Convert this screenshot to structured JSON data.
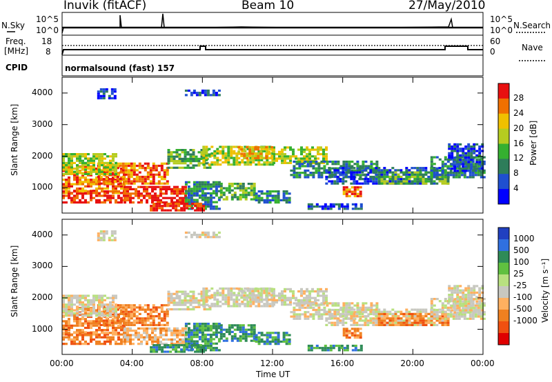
{
  "header": {
    "station": "Inuvik (fitACF)",
    "beam": "Beam 10",
    "date": "27/May/2010"
  },
  "top_panels": {
    "nsky": {
      "label": "N.Sky",
      "ticks": [
        "10^5",
        "10^0"
      ],
      "right_label": "N.Search",
      "right_ticks": [
        "10^5",
        "10^0"
      ]
    },
    "freq": {
      "label_line1": "Freq.",
      "label_line2": "[MHz]",
      "ticks": [
        "18",
        "8"
      ],
      "right_label": "Nave",
      "right_ticks": [
        "60",
        "0"
      ]
    },
    "cpid": {
      "label": "CPID",
      "value": "normalsound (fast) 157"
    }
  },
  "chart_data": [
    {
      "type": "heatmap",
      "name": "power",
      "ylabel": "Slant Range [km]",
      "xlabel": "",
      "x_ticks": [
        "00:00",
        "04:00",
        "08:00",
        "12:00",
        "16:00",
        "20:00",
        "00:00"
      ],
      "y_ticks": [
        "1000",
        "2000",
        "3000",
        "4000"
      ],
      "ylim": [
        200,
        4500
      ],
      "colorbar": {
        "label": "Power [dB]",
        "ticks": [
          "4",
          "8",
          "12",
          "16",
          "20",
          "24",
          "28"
        ],
        "colors": [
          "#0000ff",
          "#1f4fd0",
          "#2e7d5a",
          "#35b030",
          "#b5cc20",
          "#f0c000",
          "#f07000",
          "#e81010"
        ]
      }
    },
    {
      "type": "heatmap",
      "name": "velocity",
      "ylabel": "Slant Range [km]",
      "xlabel": "Time UT",
      "x_ticks": [
        "00:00",
        "04:00",
        "08:00",
        "12:00",
        "16:00",
        "20:00",
        "00:00"
      ],
      "y_ticks": [
        "1000",
        "2000",
        "3000",
        "4000"
      ],
      "ylim": [
        200,
        4500
      ],
      "colorbar": {
        "label": "Velocity [m s⁻¹]",
        "ticks": [
          "1000",
          "500",
          "100",
          "25",
          "-25",
          "-100",
          "-500",
          "-1000"
        ],
        "colors": [
          "#2040c0",
          "#3070e0",
          "#2e8b57",
          "#60c040",
          "#b8e080",
          "#c8c8c0",
          "#ffb060",
          "#f08020",
          "#f05010",
          "#e00000"
        ]
      }
    }
  ]
}
